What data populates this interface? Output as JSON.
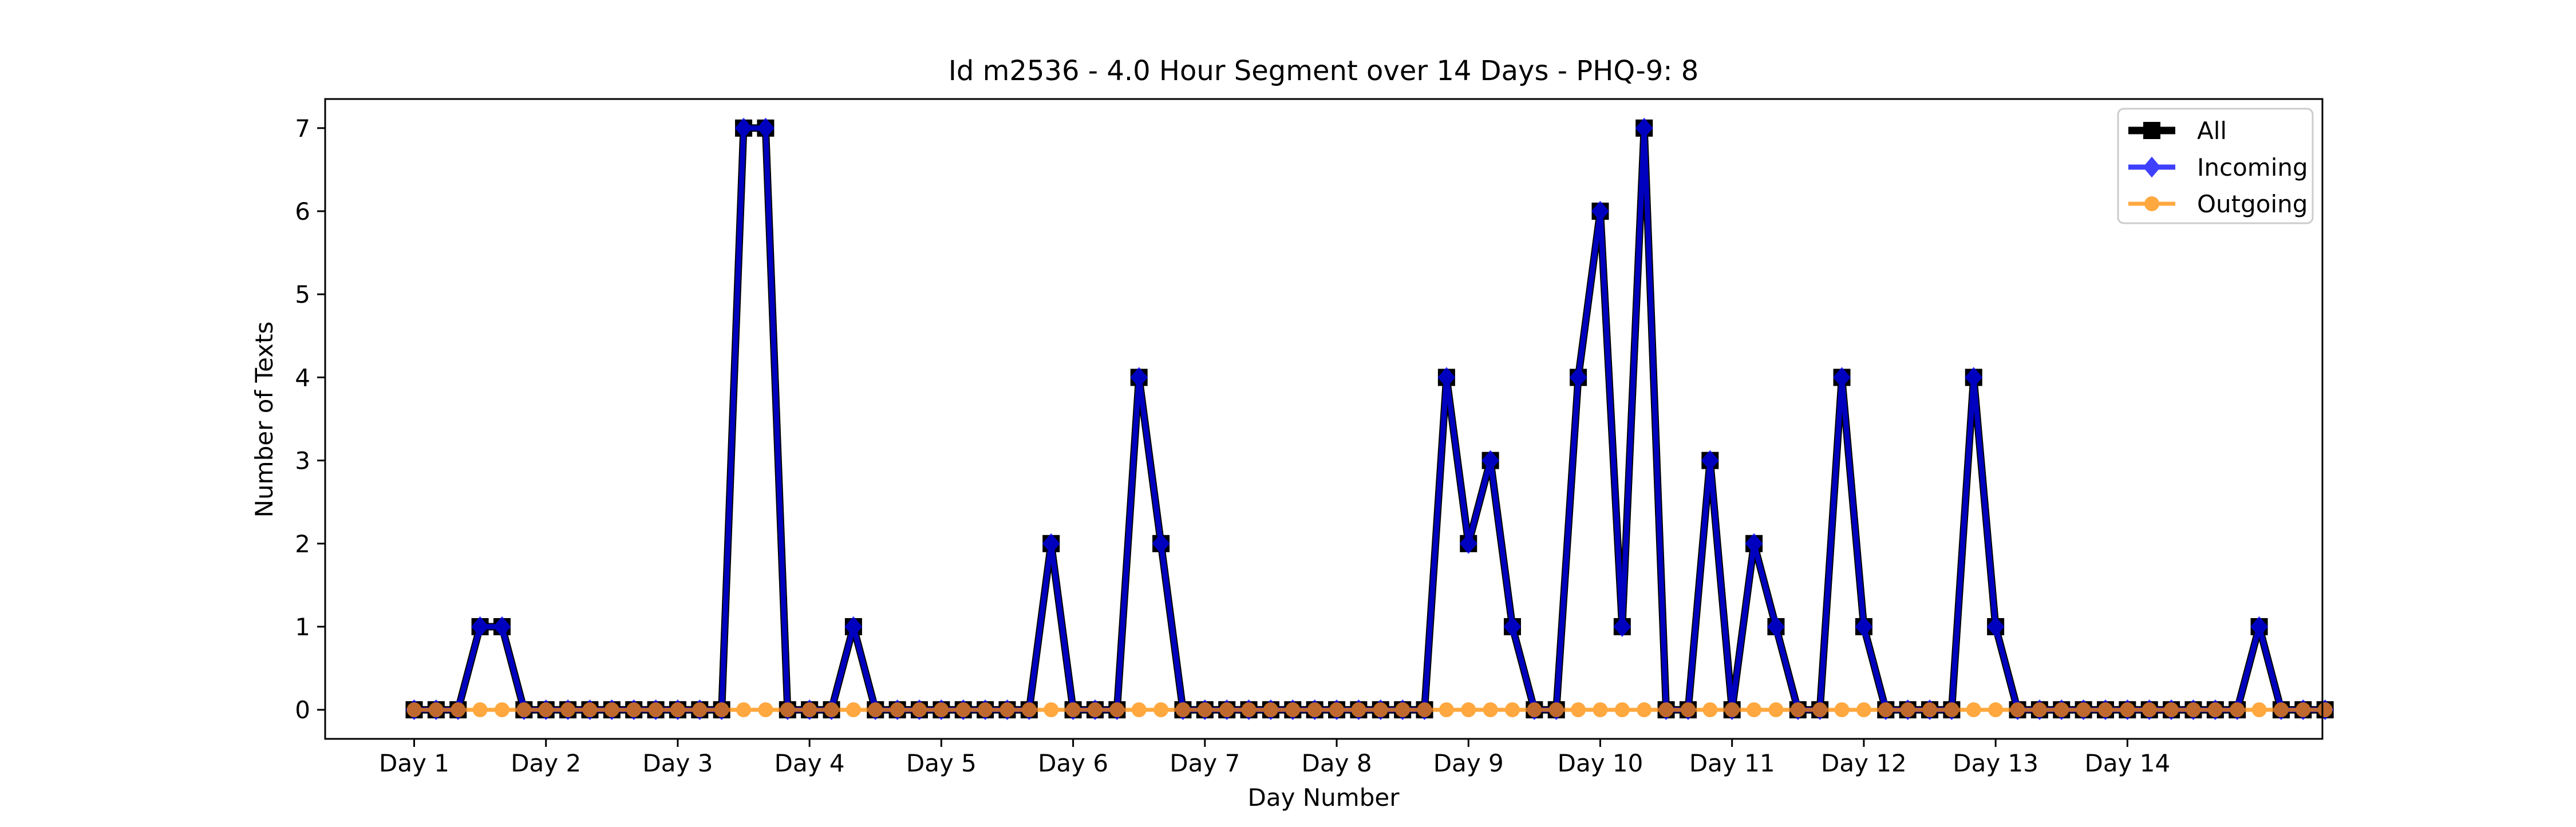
{
  "chart_data": {
    "type": "line",
    "title": "Id m2536 - 4.0 Hour Segment over 14 Days - PHQ-9: 8",
    "xlabel": "Day Number",
    "ylabel": "Number of Texts",
    "x_tick_labels": [
      "Day 1",
      "Day 2",
      "Day 3",
      "Day 4",
      "Day 5",
      "Day 6",
      "Day 7",
      "Day 8",
      "Day 9",
      "Day 10",
      "Day 11",
      "Day 12",
      "Day 13",
      "Day 14"
    ],
    "y_ticks": [
      0,
      1,
      2,
      3,
      4,
      5,
      6,
      7
    ],
    "ylim": [
      -0.35,
      7.35
    ],
    "legend_location": "upper right",
    "grid": false,
    "series": [
      {
        "name": "All",
        "color": "#000000",
        "marker": "square",
        "values": [
          0,
          0,
          0,
          1,
          1,
          0,
          0,
          0,
          0,
          0,
          0,
          0,
          0,
          0,
          0,
          7,
          7,
          0,
          0,
          0,
          1,
          0,
          0,
          0,
          0,
          0,
          0,
          0,
          0,
          2,
          0,
          0,
          0,
          4,
          2,
          0,
          0,
          0,
          0,
          0,
          0,
          0,
          0,
          0,
          0,
          0,
          0,
          4,
          2,
          3,
          1,
          0,
          0,
          4,
          6,
          1,
          7,
          0,
          0,
          3,
          0,
          2,
          1,
          0,
          0,
          4,
          1,
          0,
          0,
          0,
          0,
          4,
          1,
          0,
          0,
          0,
          0,
          0,
          0,
          0,
          0,
          0,
          0,
          0,
          1,
          0,
          0,
          0
        ]
      },
      {
        "name": "Incoming",
        "color": "#0000ff",
        "marker": "diamond",
        "values": [
          0,
          0,
          0,
          1,
          1,
          0,
          0,
          0,
          0,
          0,
          0,
          0,
          0,
          0,
          0,
          7,
          7,
          0,
          0,
          0,
          1,
          0,
          0,
          0,
          0,
          0,
          0,
          0,
          0,
          2,
          0,
          0,
          0,
          4,
          2,
          0,
          0,
          0,
          0,
          0,
          0,
          0,
          0,
          0,
          0,
          0,
          0,
          4,
          2,
          3,
          1,
          0,
          0,
          4,
          6,
          1,
          7,
          0,
          0,
          3,
          0,
          2,
          1,
          0,
          0,
          4,
          1,
          0,
          0,
          0,
          0,
          4,
          1,
          0,
          0,
          0,
          0,
          0,
          0,
          0,
          0,
          0,
          0,
          0,
          1,
          0,
          0,
          0
        ]
      },
      {
        "name": "Outgoing",
        "color": "#ff8c00",
        "marker": "circle",
        "values": [
          0,
          0,
          0,
          0,
          0,
          0,
          0,
          0,
          0,
          0,
          0,
          0,
          0,
          0,
          0,
          0,
          0,
          0,
          0,
          0,
          0,
          0,
          0,
          0,
          0,
          0,
          0,
          0,
          0,
          0,
          0,
          0,
          0,
          0,
          0,
          0,
          0,
          0,
          0,
          0,
          0,
          0,
          0,
          0,
          0,
          0,
          0,
          0,
          0,
          0,
          0,
          0,
          0,
          0,
          0,
          0,
          0,
          0,
          0,
          0,
          0,
          0,
          0,
          0,
          0,
          0,
          0,
          0,
          0,
          0,
          0,
          0,
          0,
          0,
          0,
          0,
          0,
          0,
          0,
          0,
          0,
          0,
          0,
          0,
          0,
          0,
          0,
          0
        ]
      }
    ]
  }
}
